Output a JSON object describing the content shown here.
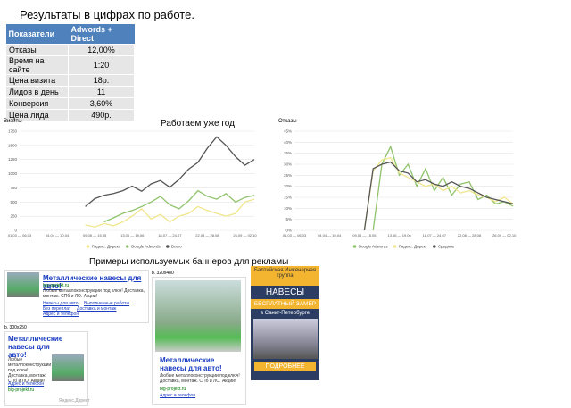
{
  "title": "Результаты в цифрах по работе.",
  "table": {
    "header": [
      "Показатели",
      "Adwords + Direct"
    ],
    "rows": [
      [
        "Отказы",
        "12,00%"
      ],
      [
        "Время на сайте",
        "1:20"
      ],
      [
        "Цена визита",
        "18р."
      ],
      [
        "Лидов в день",
        "11"
      ],
      [
        "Конверсия",
        "3,60%"
      ],
      [
        "Цена лида",
        "490р."
      ]
    ]
  },
  "charts_heading": "Работаем уже год",
  "chart_data": [
    {
      "type": "line",
      "title": "Визиты",
      "categories": [
        "01.03 — 06.03",
        null,
        null,
        null,
        "04.04 — 10.04",
        null,
        null,
        null,
        "09.05 — 15.05",
        null,
        null,
        null,
        "13.06 — 19.06",
        null,
        null,
        null,
        "18.07 — 24.07",
        null,
        null,
        null,
        "22.08 — 28.08",
        null,
        null,
        null,
        "26.09 — 02.10",
        null
      ],
      "ylim": [
        0,
        1750
      ],
      "yticks": [
        0,
        250,
        500,
        750,
        1000,
        1250,
        1500,
        1750
      ],
      "grid": true,
      "series": [
        {
          "name": "Яндекс: Директ",
          "color": "#f0e68c",
          "values": [
            null,
            null,
            null,
            null,
            null,
            null,
            null,
            100,
            60,
            120,
            80,
            150,
            250,
            380,
            200,
            280,
            150,
            250,
            300,
            420,
            350,
            300,
            250,
            300,
            500,
            550
          ]
        },
        {
          "name": "Google Adwords",
          "color": "#8fc36b",
          "values": [
            null,
            null,
            null,
            null,
            null,
            null,
            null,
            null,
            null,
            150,
            220,
            300,
            350,
            420,
            500,
            600,
            450,
            380,
            520,
            700,
            600,
            550,
            650,
            500,
            580,
            620
          ]
        },
        {
          "name": "Всего",
          "color": "#555555",
          "values": [
            null,
            null,
            null,
            null,
            null,
            null,
            null,
            420,
            560,
            620,
            650,
            700,
            780,
            690,
            820,
            880,
            760,
            900,
            1080,
            1200,
            1450,
            1650,
            1500,
            1300,
            1150,
            1250
          ]
        }
      ]
    },
    {
      "type": "line",
      "title": "Отказы",
      "categories": [
        "01.03 — 06.03",
        null,
        null,
        null,
        "04.04 — 10.04",
        null,
        null,
        null,
        "09.05 — 15.05",
        null,
        null,
        null,
        "13.06 — 19.06",
        null,
        null,
        null,
        "18.07 — 24.07",
        null,
        null,
        null,
        "22.08 — 28.08",
        null,
        null,
        null,
        "26.09 — 02.10",
        null
      ],
      "ylim": [
        0,
        45
      ],
      "yticks": [
        {
          "value": 0,
          "label": "0%"
        },
        {
          "value": 5,
          "label": "5%"
        },
        {
          "value": 10,
          "label": "10%"
        },
        {
          "value": 15,
          "label": "15%"
        },
        {
          "value": 20,
          "label": "20%"
        },
        {
          "value": 25,
          "label": "25%"
        },
        {
          "value": 30,
          "label": "30%"
        },
        {
          "value": 35,
          "label": "35%"
        },
        {
          "value": 40,
          "label": "40%"
        },
        {
          "value": 45,
          "label": "45%"
        }
      ],
      "grid": true,
      "series": [
        {
          "name": "Google Adwords",
          "color": "#8fc36b",
          "values": [
            null,
            null,
            null,
            null,
            null,
            null,
            null,
            null,
            null,
            0,
            30,
            38,
            25,
            30,
            20,
            28,
            18,
            24,
            16,
            21,
            22,
            14,
            16,
            12,
            13,
            11
          ]
        },
        {
          "name": "Яндекс: Директ",
          "color": "#f0e68c",
          "values": [
            null,
            null,
            null,
            null,
            null,
            null,
            null,
            null,
            0,
            27,
            32,
            33,
            26,
            24,
            22,
            20,
            21,
            18,
            20,
            17,
            18,
            16,
            15,
            13,
            15,
            12
          ]
        },
        {
          "name": "Средние",
          "color": "#555555",
          "values": [
            null,
            null,
            null,
            null,
            null,
            null,
            null,
            null,
            0,
            28,
            30,
            31,
            27,
            26,
            22,
            23,
            21,
            20,
            22,
            20,
            19,
            17,
            15,
            14,
            13,
            12
          ]
        }
      ]
    }
  ],
  "banners": {
    "heading": "Примеры используемых баннеров для рекламы",
    "text_ad": {
      "title": "Металлические навесы для авто!",
      "url": "big-projekt.ru",
      "text": "Любые металлоконструкции под ключ! Доставка, монтаж. СПб и ЛО. Акции!",
      "links": [
        "Навесы для авто",
        "Выполненные работы",
        "Без переплат",
        "Доставка и монтаж",
        "Адрес и телефон"
      ]
    },
    "small_ad": {
      "size": "b. 300x250",
      "title": "Металлические навесы для авто!",
      "text": "Любые металлоконструкции под ключ! Доставка, монтаж. СПб и ЛО. Акции!",
      "link": "Адрес и телефон",
      "url": "big-projekt.ru",
      "footer": "Яндекс.Директ"
    },
    "image_ad": {
      "size": "b. 320x480",
      "title": "Металлические навесы для авто!",
      "text": "Любые металлоконструкции под ключ! Доставка, монтаж. СПб и ЛО. Акции!",
      "url": "big-projekt.ru",
      "link": "Адрес и телефон"
    },
    "display_ad": {
      "company": "Балтийская Инженерная группа",
      "product": "НАВЕСЫ",
      "offer": "БЕСПЛАТНЫЙ ЗАМЕР",
      "city": "в Санкт-Петербурге",
      "button": "ПОДРОБНЕЕ"
    }
  }
}
